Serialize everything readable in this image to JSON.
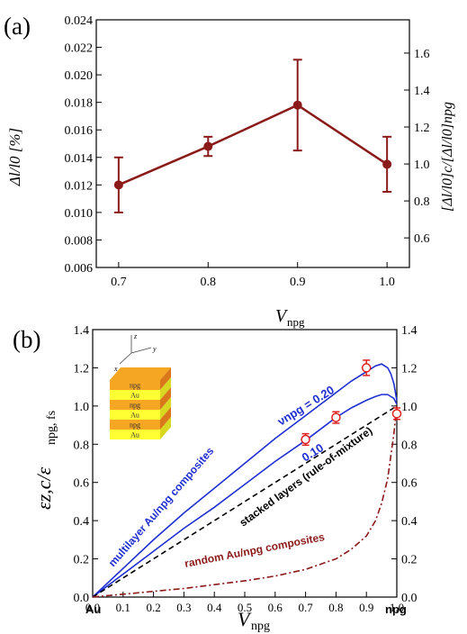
{
  "chart_data": [
    {
      "type": "line",
      "panel_label": "(a)",
      "xlabel_main": "V",
      "xlabel_sub": "npg",
      "ylabel": "Δl/l0 [%]",
      "ylabel_right": "[Δl/l0]c/[Δl/l0]npg",
      "xlim": [
        0.675,
        1.025
      ],
      "ylim": [
        0.006,
        0.024
      ],
      "ylim_right": [
        0.44,
        1.78
      ],
      "x_ticks": [
        "0.7",
        "0.8",
        "0.9",
        "1.0"
      ],
      "y_ticks": [
        "0.006",
        "0.008",
        "0.010",
        "0.012",
        "0.014",
        "0.016",
        "0.018",
        "0.020",
        "0.022",
        "0.024"
      ],
      "y_ticks_right": [
        "0.6",
        "0.8",
        "1.0",
        "1.2",
        "1.4",
        "1.6"
      ],
      "series": [
        {
          "x": [
            0.7,
            0.8,
            0.9,
            1.0
          ],
          "y": [
            0.012,
            0.0148,
            0.0178,
            0.0135
          ],
          "yerr": [
            0.002,
            0.0007,
            0.0033,
            0.002
          ],
          "color": "#8b1a1a"
        }
      ]
    },
    {
      "type": "line",
      "panel_label": "(b)",
      "xlabel_main": "V",
      "xlabel_sub": "npg",
      "ylabel_main": "εz,c/ε",
      "ylabel_sub": "npg, fs",
      "xlim": [
        0,
        1
      ],
      "ylim": [
        0,
        1.4
      ],
      "x_ticks": [
        "0.0",
        "0.1",
        "0.2",
        "0.3",
        "0.4",
        "0.5",
        "0.6",
        "0.7",
        "0.8",
        "0.9",
        "1.0"
      ],
      "y_ticks": [
        "0.0",
        "0.2",
        "0.4",
        "0.6",
        "0.8",
        "1.0",
        "1.2",
        "1.4"
      ],
      "x_end_labels": [
        "Au",
        "npg"
      ],
      "annotations": {
        "multilayer": "multilayer Au/npg composites",
        "stacked": "stacked layers (rule-of-mixture)",
        "random": "random Au/npg composites",
        "nu_020": "νnpg = 0.20",
        "nu_010": "0.10",
        "inset_layers": [
          "npg",
          "Au",
          "npg",
          "Au",
          "npg",
          "Au"
        ],
        "inset_axes": [
          "z",
          "y",
          "x"
        ]
      },
      "series": [
        {
          "name": "0.20",
          "color": "#1f2fd0",
          "x": [
            0,
            0.1,
            0.2,
            0.3,
            0.4,
            0.5,
            0.6,
            0.7,
            0.8,
            0.85,
            0.9,
            0.93,
            0.95,
            0.97,
            0.98,
            0.99,
            1.0
          ],
          "y": [
            0,
            0.15,
            0.3,
            0.44,
            0.57,
            0.7,
            0.83,
            0.95,
            1.07,
            1.13,
            1.18,
            1.21,
            1.22,
            1.2,
            1.17,
            1.12,
            1.03
          ]
        },
        {
          "name": "0.10",
          "color": "#1f2fd0",
          "x": [
            0,
            0.1,
            0.2,
            0.3,
            0.4,
            0.5,
            0.6,
            0.7,
            0.8,
            0.85,
            0.9,
            0.93,
            0.95,
            0.97,
            0.98,
            0.99,
            1.0
          ],
          "y": [
            0,
            0.12,
            0.24,
            0.36,
            0.47,
            0.59,
            0.71,
            0.82,
            0.94,
            0.99,
            1.03,
            1.05,
            1.06,
            1.06,
            1.05,
            1.04,
            1.01
          ]
        },
        {
          "name": "stacked",
          "color": "#000000",
          "dash": "dashed",
          "x": [
            0,
            1
          ],
          "y": [
            0,
            1
          ]
        },
        {
          "name": "random",
          "color": "#8b1a1a",
          "dash": "dashdot",
          "x": [
            0,
            0.1,
            0.2,
            0.3,
            0.4,
            0.5,
            0.6,
            0.7,
            0.8,
            0.85,
            0.9,
            0.93,
            0.95,
            0.97,
            0.99,
            1.0
          ],
          "y": [
            0,
            0.015,
            0.03,
            0.045,
            0.065,
            0.085,
            0.11,
            0.145,
            0.2,
            0.25,
            0.32,
            0.4,
            0.49,
            0.62,
            0.85,
            1.0
          ]
        }
      ],
      "points": {
        "x": [
          0.7,
          0.8,
          0.9,
          1.0
        ],
        "y": [
          0.825,
          0.94,
          1.2,
          0.96
        ],
        "yerr": [
          0.03,
          0.03,
          0.04,
          0.03
        ],
        "color": "#e0201f"
      }
    }
  ]
}
